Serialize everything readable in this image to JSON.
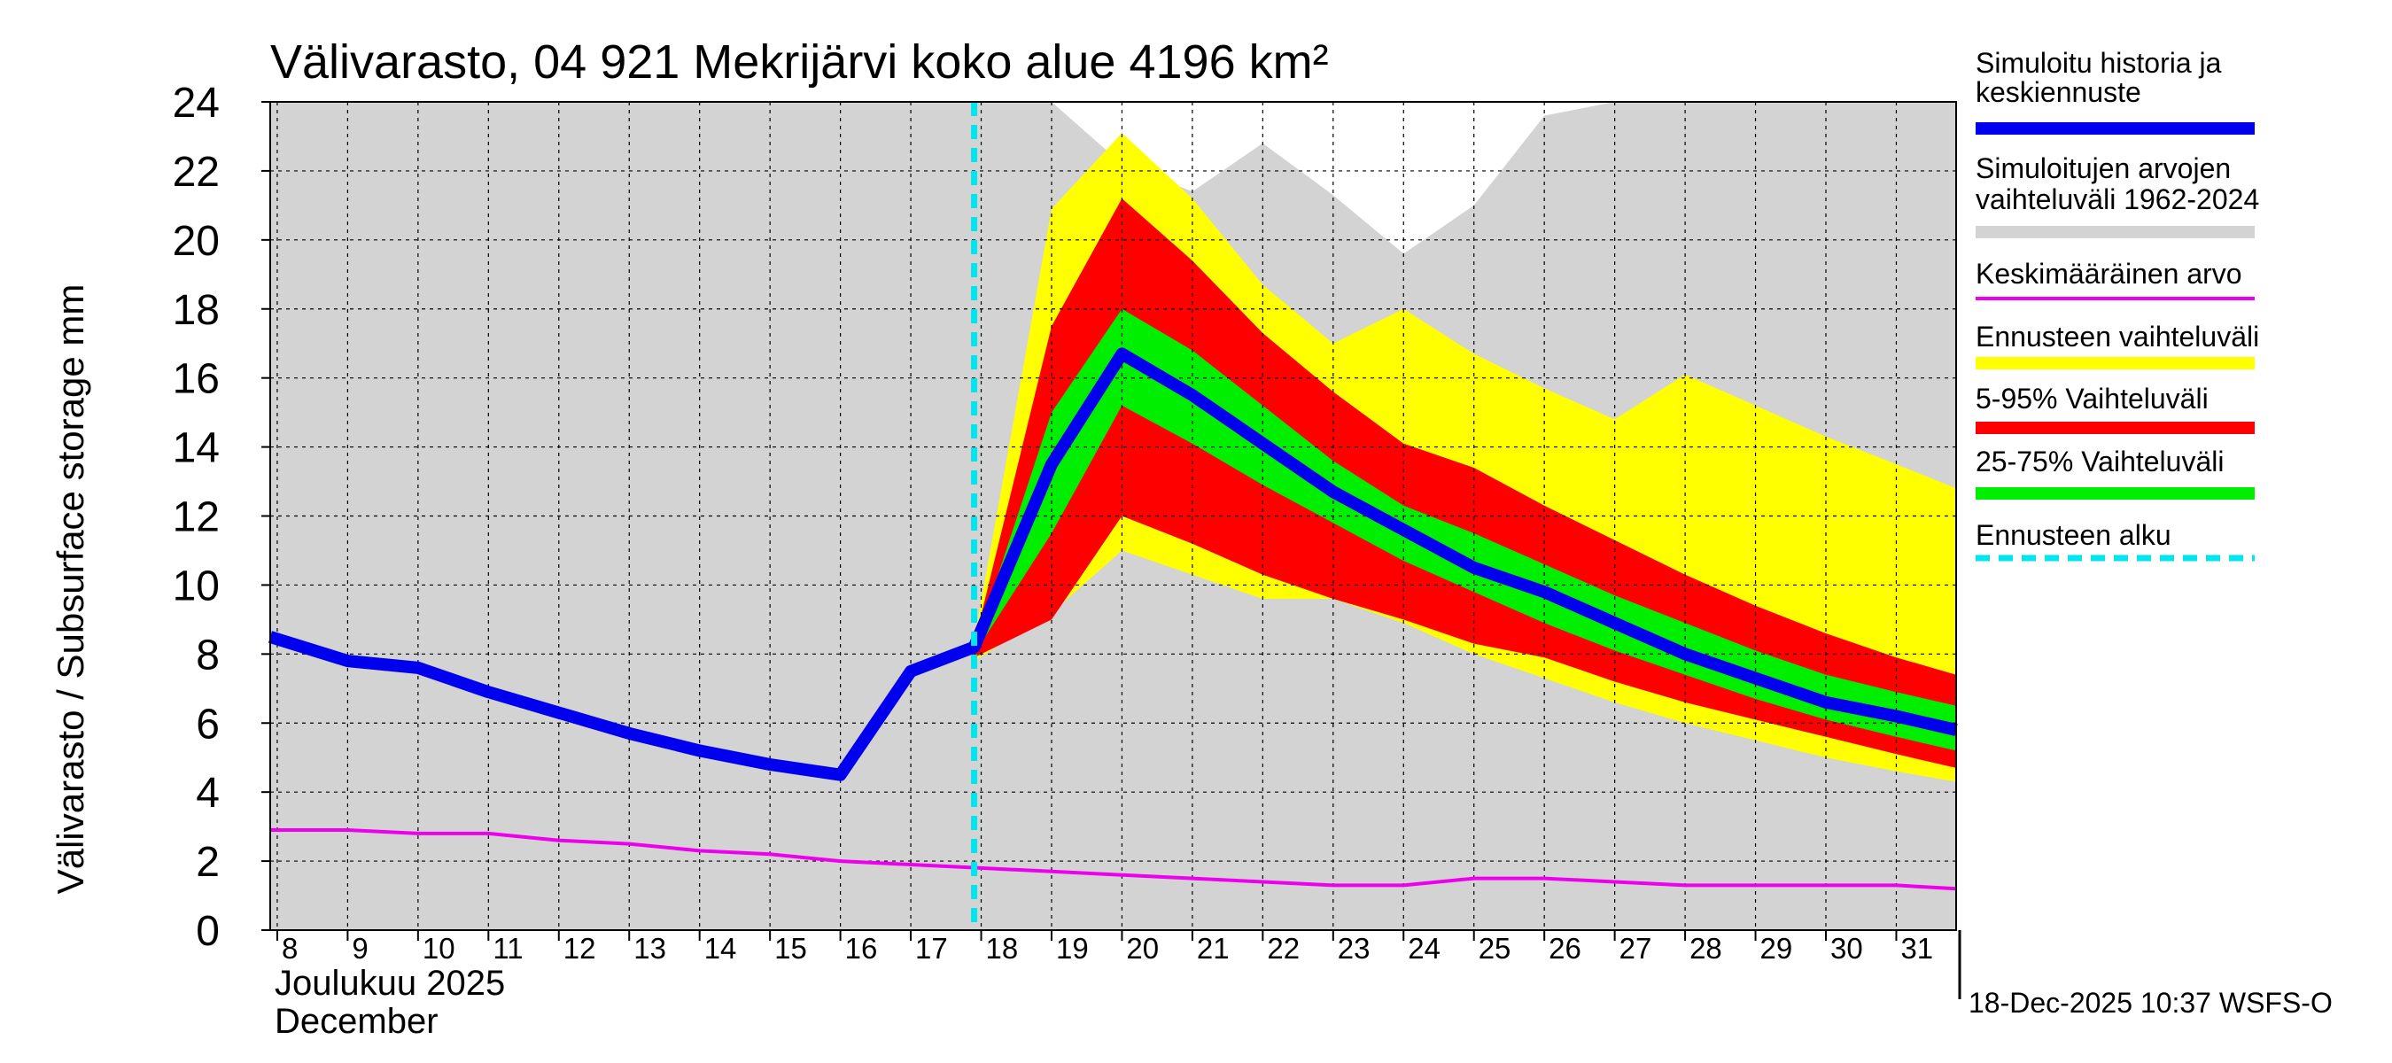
{
  "colors": {
    "history": "#0000ee",
    "range": "#d3d3d3",
    "mean": "#ee00ee",
    "forecast_range": "#ffff00",
    "p5_95": "#ff0000",
    "p25_75": "#00ee00",
    "forecast_start": "#00e5ee"
  },
  "chart_data": {
    "type": "area",
    "title": "Välivarasto, 04 921 Mekrijärvi koko alue 4196 km²",
    "ylabel": "Välivarasto / Subsurface storage  mm",
    "ylim": [
      0,
      24
    ],
    "yticks": [
      0,
      2,
      4,
      6,
      8,
      10,
      12,
      14,
      16,
      18,
      20,
      22,
      24
    ],
    "xlim": [
      7.9,
      31.85
    ],
    "xticks": [
      8,
      9,
      10,
      11,
      12,
      13,
      14,
      15,
      16,
      17,
      18,
      19,
      20,
      21,
      22,
      23,
      24,
      25,
      26,
      27,
      28,
      29,
      30,
      31
    ],
    "xtick_labels": [
      "8",
      "9",
      "10",
      "11",
      "12",
      "13",
      "14",
      "15",
      "16",
      "17",
      "18",
      "19",
      "20",
      "21",
      "22",
      "23",
      "24",
      "25",
      "26",
      "27",
      "28",
      "29",
      "30",
      "31"
    ],
    "month_label_fi": "Joulukuu  2025",
    "month_label_en": "December",
    "forecast_start_day": 17.9,
    "simulated_range": {
      "x": [
        7.9,
        19,
        20,
        21,
        22,
        23,
        24,
        25,
        26,
        27,
        31.85
      ],
      "upper": [
        24,
        24,
        22.2,
        21.4,
        22.8,
        21.3,
        19.6,
        21.0,
        23.6,
        24,
        24
      ],
      "lower": [
        0,
        0,
        0,
        0,
        0,
        0,
        0,
        0,
        0,
        0,
        0
      ]
    },
    "forecast_range": {
      "x": [
        17.9,
        19,
        20,
        21,
        22,
        23,
        24,
        25,
        26,
        27,
        28,
        29,
        30,
        31,
        31.85
      ],
      "upper": [
        8.4,
        20.9,
        23.1,
        21.2,
        18.7,
        17.0,
        18.0,
        16.7,
        15.7,
        14.8,
        16.1,
        15.2,
        14.3,
        13.5,
        12.8
      ],
      "lower": [
        7.8,
        9.2,
        11.0,
        10.3,
        9.6,
        9.6,
        8.9,
        8.0,
        7.3,
        6.6,
        6.0,
        5.5,
        5.0,
        4.6,
        4.3
      ]
    },
    "p5_95": {
      "x": [
        17.9,
        19,
        20,
        21,
        22,
        23,
        24,
        25,
        26,
        27,
        28,
        29,
        30,
        31,
        31.85
      ],
      "upper": [
        8.3,
        17.5,
        21.2,
        19.4,
        17.3,
        15.6,
        14.1,
        13.4,
        12.3,
        11.3,
        10.3,
        9.4,
        8.6,
        7.9,
        7.4
      ],
      "lower": [
        7.9,
        9.0,
        12.0,
        11.2,
        10.3,
        9.6,
        9.0,
        8.3,
        7.9,
        7.2,
        6.6,
        6.1,
        5.6,
        5.1,
        4.7
      ]
    },
    "p25_75": {
      "x": [
        17.9,
        19,
        20,
        21,
        22,
        23,
        24,
        25,
        26,
        27,
        28,
        29,
        30,
        31,
        31.85
      ],
      "upper": [
        8.2,
        15.0,
        18.0,
        16.8,
        15.2,
        13.6,
        12.3,
        11.5,
        10.6,
        9.7,
        8.9,
        8.1,
        7.4,
        6.9,
        6.5
      ],
      "lower": [
        8.0,
        11.5,
        15.2,
        14.1,
        12.9,
        11.8,
        10.7,
        9.8,
        8.9,
        8.1,
        7.4,
        6.7,
        6.1,
        5.6,
        5.2
      ]
    },
    "series": [
      {
        "name": "Simuloitu historia ja keskiennuste",
        "x": [
          7.9,
          9,
          10,
          11,
          12,
          13,
          14,
          15,
          16,
          17,
          17.9,
          19,
          20,
          21,
          22,
          23,
          24,
          25,
          26,
          27,
          28,
          29,
          30,
          31,
          31.85
        ],
        "values": [
          8.5,
          7.8,
          7.6,
          6.9,
          6.3,
          5.7,
          5.2,
          4.8,
          4.5,
          7.5,
          8.2,
          13.5,
          16.7,
          15.5,
          14.1,
          12.7,
          11.6,
          10.5,
          9.8,
          8.9,
          8.0,
          7.3,
          6.6,
          6.2,
          5.8
        ]
      },
      {
        "name": "Keskimääräinen arvo",
        "x": [
          7.9,
          9,
          10,
          11,
          12,
          13,
          14,
          15,
          16,
          17,
          18,
          19,
          20,
          21,
          22,
          23,
          24,
          25,
          26,
          27,
          28,
          29,
          30,
          31,
          31.85
        ],
        "values": [
          2.9,
          2.9,
          2.8,
          2.8,
          2.6,
          2.5,
          2.3,
          2.2,
          2.0,
          1.9,
          1.8,
          1.7,
          1.6,
          1.5,
          1.4,
          1.3,
          1.3,
          1.5,
          1.5,
          1.4,
          1.3,
          1.3,
          1.3,
          1.3,
          1.2
        ]
      }
    ],
    "legend": [
      {
        "key": "history",
        "lines": [
          "Simuloitu historia ja",
          "keskiennuste"
        ]
      },
      {
        "key": "range",
        "lines": [
          "Simuloitujen arvojen",
          "vaihteluväli 1962-2024"
        ]
      },
      {
        "key": "mean",
        "lines": [
          "Keskimääräinen arvo"
        ]
      },
      {
        "key": "forecast_range",
        "lines": [
          "Ennusteen vaihteluväli"
        ]
      },
      {
        "key": "p5_95",
        "lines": [
          "5-95% Vaihteluväli"
        ]
      },
      {
        "key": "p25_75",
        "lines": [
          "25-75% Vaihteluväli"
        ]
      },
      {
        "key": "forecast_start",
        "lines": [
          "Ennusteen alku"
        ]
      }
    ],
    "footer": "18-Dec-2025 10:37 WSFS-O"
  }
}
